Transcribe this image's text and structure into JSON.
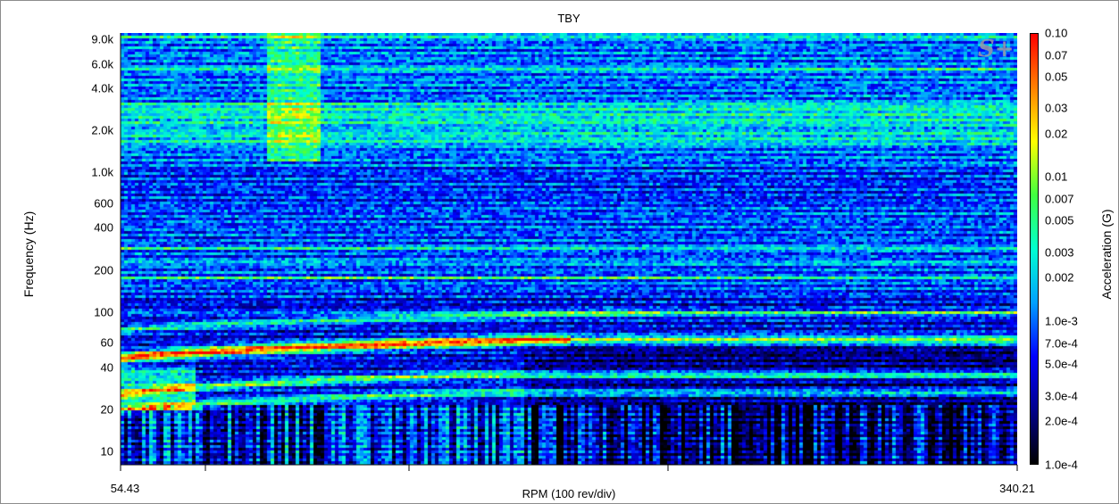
{
  "chart_data": {
    "type": "heatmap",
    "title": "TBY",
    "xlabel": "RPM (100 rev/div)",
    "ylabel": "Frequency (Hz)",
    "colorbar_label": "Acceleration (G)",
    "x_range": [
      54.43,
      340.21
    ],
    "x_tick_labels": [
      "54.43",
      "340.21"
    ],
    "y_scale": "log",
    "y_range": [
      8,
      10000
    ],
    "y_ticks": [
      {
        "value": 10,
        "label": "10"
      },
      {
        "value": 20,
        "label": "20"
      },
      {
        "value": 40,
        "label": "40"
      },
      {
        "value": 60,
        "label": "60"
      },
      {
        "value": 100,
        "label": "100"
      },
      {
        "value": 200,
        "label": "200"
      },
      {
        "value": 400,
        "label": "400"
      },
      {
        "value": 600,
        "label": "600"
      },
      {
        "value": 1000,
        "label": "1.0k"
      },
      {
        "value": 2000,
        "label": "2.0k"
      },
      {
        "value": 4000,
        "label": "4.0k"
      },
      {
        "value": 6000,
        "label": "6.0k"
      },
      {
        "value": 9000,
        "label": "9.0k"
      }
    ],
    "colorbar_scale": "log",
    "colorbar_range": [
      0.0001,
      0.1
    ],
    "colorbar_ticks": [
      {
        "value": 0.1,
        "label": "0.10"
      },
      {
        "value": 0.07,
        "label": "0.07"
      },
      {
        "value": 0.05,
        "label": "0.05"
      },
      {
        "value": 0.03,
        "label": "0.03"
      },
      {
        "value": 0.02,
        "label": "0.02"
      },
      {
        "value": 0.01,
        "label": "0.01"
      },
      {
        "value": 0.007,
        "label": "0.007"
      },
      {
        "value": 0.005,
        "label": "0.005"
      },
      {
        "value": 0.003,
        "label": "0.003"
      },
      {
        "value": 0.002,
        "label": "0.002"
      },
      {
        "value": 0.001,
        "label": "1.0e-3"
      },
      {
        "value": 0.0007,
        "label": "7.0e-4"
      },
      {
        "value": 0.0005,
        "label": "5.0e-4"
      },
      {
        "value": 0.0003,
        "label": "3.0e-4"
      },
      {
        "value": 0.0002,
        "label": "2.0e-4"
      },
      {
        "value": 0.0001,
        "label": "1.0e-4"
      }
    ],
    "colormap": [
      "#000000",
      "#00008b",
      "#0000ff",
      "#00a0ff",
      "#00ffd0",
      "#40ff40",
      "#ffff00",
      "#ff8000",
      "#ff0000"
    ],
    "grid": false
  },
  "watermark": "S+"
}
